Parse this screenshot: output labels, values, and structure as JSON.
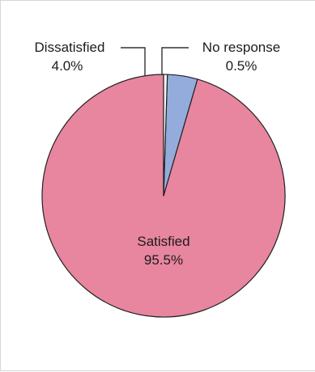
{
  "chart_data": {
    "type": "pie",
    "slices": [
      {
        "label": "Satisfied",
        "value": 95.5,
        "value_label": "95.5%",
        "color": "#e8859f"
      },
      {
        "label": "Dissatisfied",
        "value": 4.0,
        "value_label": "4.0%",
        "color": "#94acdc"
      },
      {
        "label": "No response",
        "value": 0.5,
        "value_label": "0.5%",
        "color": "#f2f2f2"
      }
    ],
    "start": "12 o'clock",
    "direction": "counterclockwise",
    "outline_color": "#222222"
  }
}
